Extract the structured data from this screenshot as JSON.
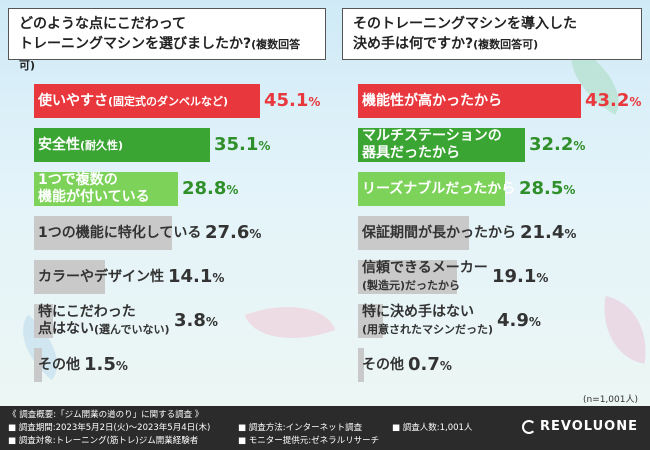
{
  "left_question": {
    "main": "どのような点にこだわって\nトレーニングマシンを選びましたか?",
    "note": "(複数回答可)"
  },
  "right_question": {
    "main": "そのトレーニングマシンを導入した\n決め手は何ですか?",
    "note": "(複数回答可)"
  },
  "n_note": "(n=1,001人)",
  "colors": {
    "red": "#e8383d",
    "green_dark": "#3aa532",
    "green_light": "#7dd35a",
    "gray": "#c9c9c9",
    "red_text": "#e8383d",
    "green_text": "#2f8f2a",
    "gray_text": "#333333"
  },
  "chart_data": [
    {
      "type": "bar",
      "orientation": "horizontal",
      "unit": "%",
      "categories": [
        "使いやすさ(固定式のダンベルなど)",
        "安全性(耐久性)",
        "1つで複数の機能が付いている",
        "1つの機能に特化している",
        "カラーやデザイン性",
        "特にこだわった点はない(選んでいない)",
        "その他"
      ],
      "labels": [
        {
          "main": "使いやすさ",
          "sub": "(固定式のダンベルなど)"
        },
        {
          "main": "安全性",
          "sub": "(耐久性)"
        },
        {
          "main": "1つで複数の\n機能が付いている",
          "sub": ""
        },
        {
          "main": "1つの機能に特化している",
          "sub": ""
        },
        {
          "main": "カラーやデザイン性",
          "sub": ""
        },
        {
          "main": "特にこだわった\n点はない",
          "sub": "(選んでいない)"
        },
        {
          "main": "その他",
          "sub": ""
        }
      ],
      "values": [
        45.1,
        35.1,
        28.8,
        27.6,
        14.1,
        3.8,
        1.5
      ],
      "value_text": [
        "45.1",
        "35.1",
        "28.8",
        "27.6",
        "14.1",
        "3.8",
        "1.5"
      ],
      "tiers": [
        "red",
        "green_dark",
        "green_light",
        "gray",
        "gray",
        "gray",
        "gray"
      ],
      "xlim": [
        0,
        60
      ]
    },
    {
      "type": "bar",
      "orientation": "horizontal",
      "unit": "%",
      "categories": [
        "機能性が高かったから",
        "マルチステーションの器具だったから",
        "リーズナブルだったから",
        "保証期間が長かったから",
        "信頼できるメーカー(製造元)だったから",
        "特に決め手はない(用意されたマシンだった)",
        "その他"
      ],
      "labels": [
        {
          "main": "機能性が高かったから",
          "sub": ""
        },
        {
          "main": "マルチステーションの\n器具だったから",
          "sub": ""
        },
        {
          "main": "リーズナブルだったから",
          "sub": ""
        },
        {
          "main": "保証期間が長かったから",
          "sub": ""
        },
        {
          "main": "信頼できるメーカー\n",
          "sub": "(製造元)だったから"
        },
        {
          "main": "特に決め手はない\n",
          "sub": "(用意されたマシンだった)"
        },
        {
          "main": "その他",
          "sub": ""
        }
      ],
      "values": [
        43.2,
        32.2,
        28.5,
        21.4,
        19.1,
        4.9,
        0.7
      ],
      "value_text": [
        "43.2",
        "32.2",
        "28.5",
        "21.4",
        "19.1",
        "4.9",
        "0.7"
      ],
      "tiers": [
        "red",
        "green_dark",
        "green_light",
        "gray",
        "gray",
        "gray",
        "gray"
      ],
      "xlim": [
        0,
        58
      ]
    }
  ],
  "footer": {
    "title": "《 調査概要:「ジム開業の道のり」に関する調査 》",
    "period": "■ 調査期間:2023年5月2日(火)〜2023年5月4日(木)",
    "target": "■ 調査対象:トレーニング(筋トレ)ジム開業経験者",
    "method": "■ 調査方法:インターネット調査",
    "panel": "■ モニター提供元:ゼネラルリサーチ",
    "count": "■ 調査人数:1,001人",
    "logo": "REVOLUONE"
  }
}
